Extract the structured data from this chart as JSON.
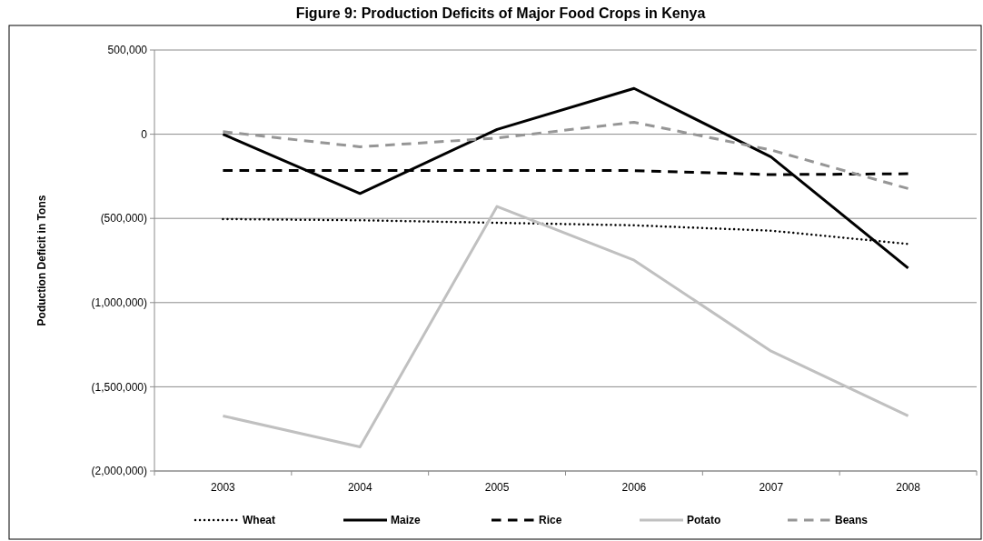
{
  "chart_data": {
    "type": "line",
    "title": "Figure 9: Production Deficits of Major Food Crops in Kenya",
    "ylabel": "Poduction Deficit in Tons",
    "categories": [
      "2003",
      "2004",
      "2005",
      "2006",
      "2007",
      "2008"
    ],
    "series": [
      {
        "name": "Wheat",
        "color": "#000000",
        "line_style": "dotted",
        "values": [
          -504000,
          -511000,
          -526000,
          -541000,
          -573000,
          -652000
        ]
      },
      {
        "name": "Maize",
        "color": "#000000",
        "line_style": "solid",
        "values": [
          0,
          -352000,
          28000,
          272000,
          -135000,
          -795000
        ]
      },
      {
        "name": "Rice",
        "color": "#000000",
        "line_style": "dashed",
        "values": [
          -216000,
          -216000,
          -216000,
          -216000,
          -240000,
          -235000
        ]
      },
      {
        "name": "Potato",
        "color": "#c0c0c0",
        "line_style": "solid",
        "values": [
          -1673000,
          -1857000,
          -429000,
          -748000,
          -1288000,
          -1673000
        ]
      },
      {
        "name": "Beans",
        "color": "#969696",
        "line_style": "dashed",
        "values": [
          15000,
          -75000,
          -23000,
          71000,
          -94000,
          -323000
        ]
      }
    ],
    "ylim": [
      -2000000,
      500000
    ],
    "yticks": [
      {
        "value": -2000000,
        "label": "(2,000,000)"
      },
      {
        "value": -1500000,
        "label": "(1,500,000)"
      },
      {
        "value": -1000000,
        "label": "(1,000,000)"
      },
      {
        "value": -500000,
        "label": "(500,000)"
      },
      0,
      {
        "value": 500000,
        "label": "500,000"
      }
    ],
    "grid": "y",
    "legend": "bottom",
    "marker": "none"
  }
}
